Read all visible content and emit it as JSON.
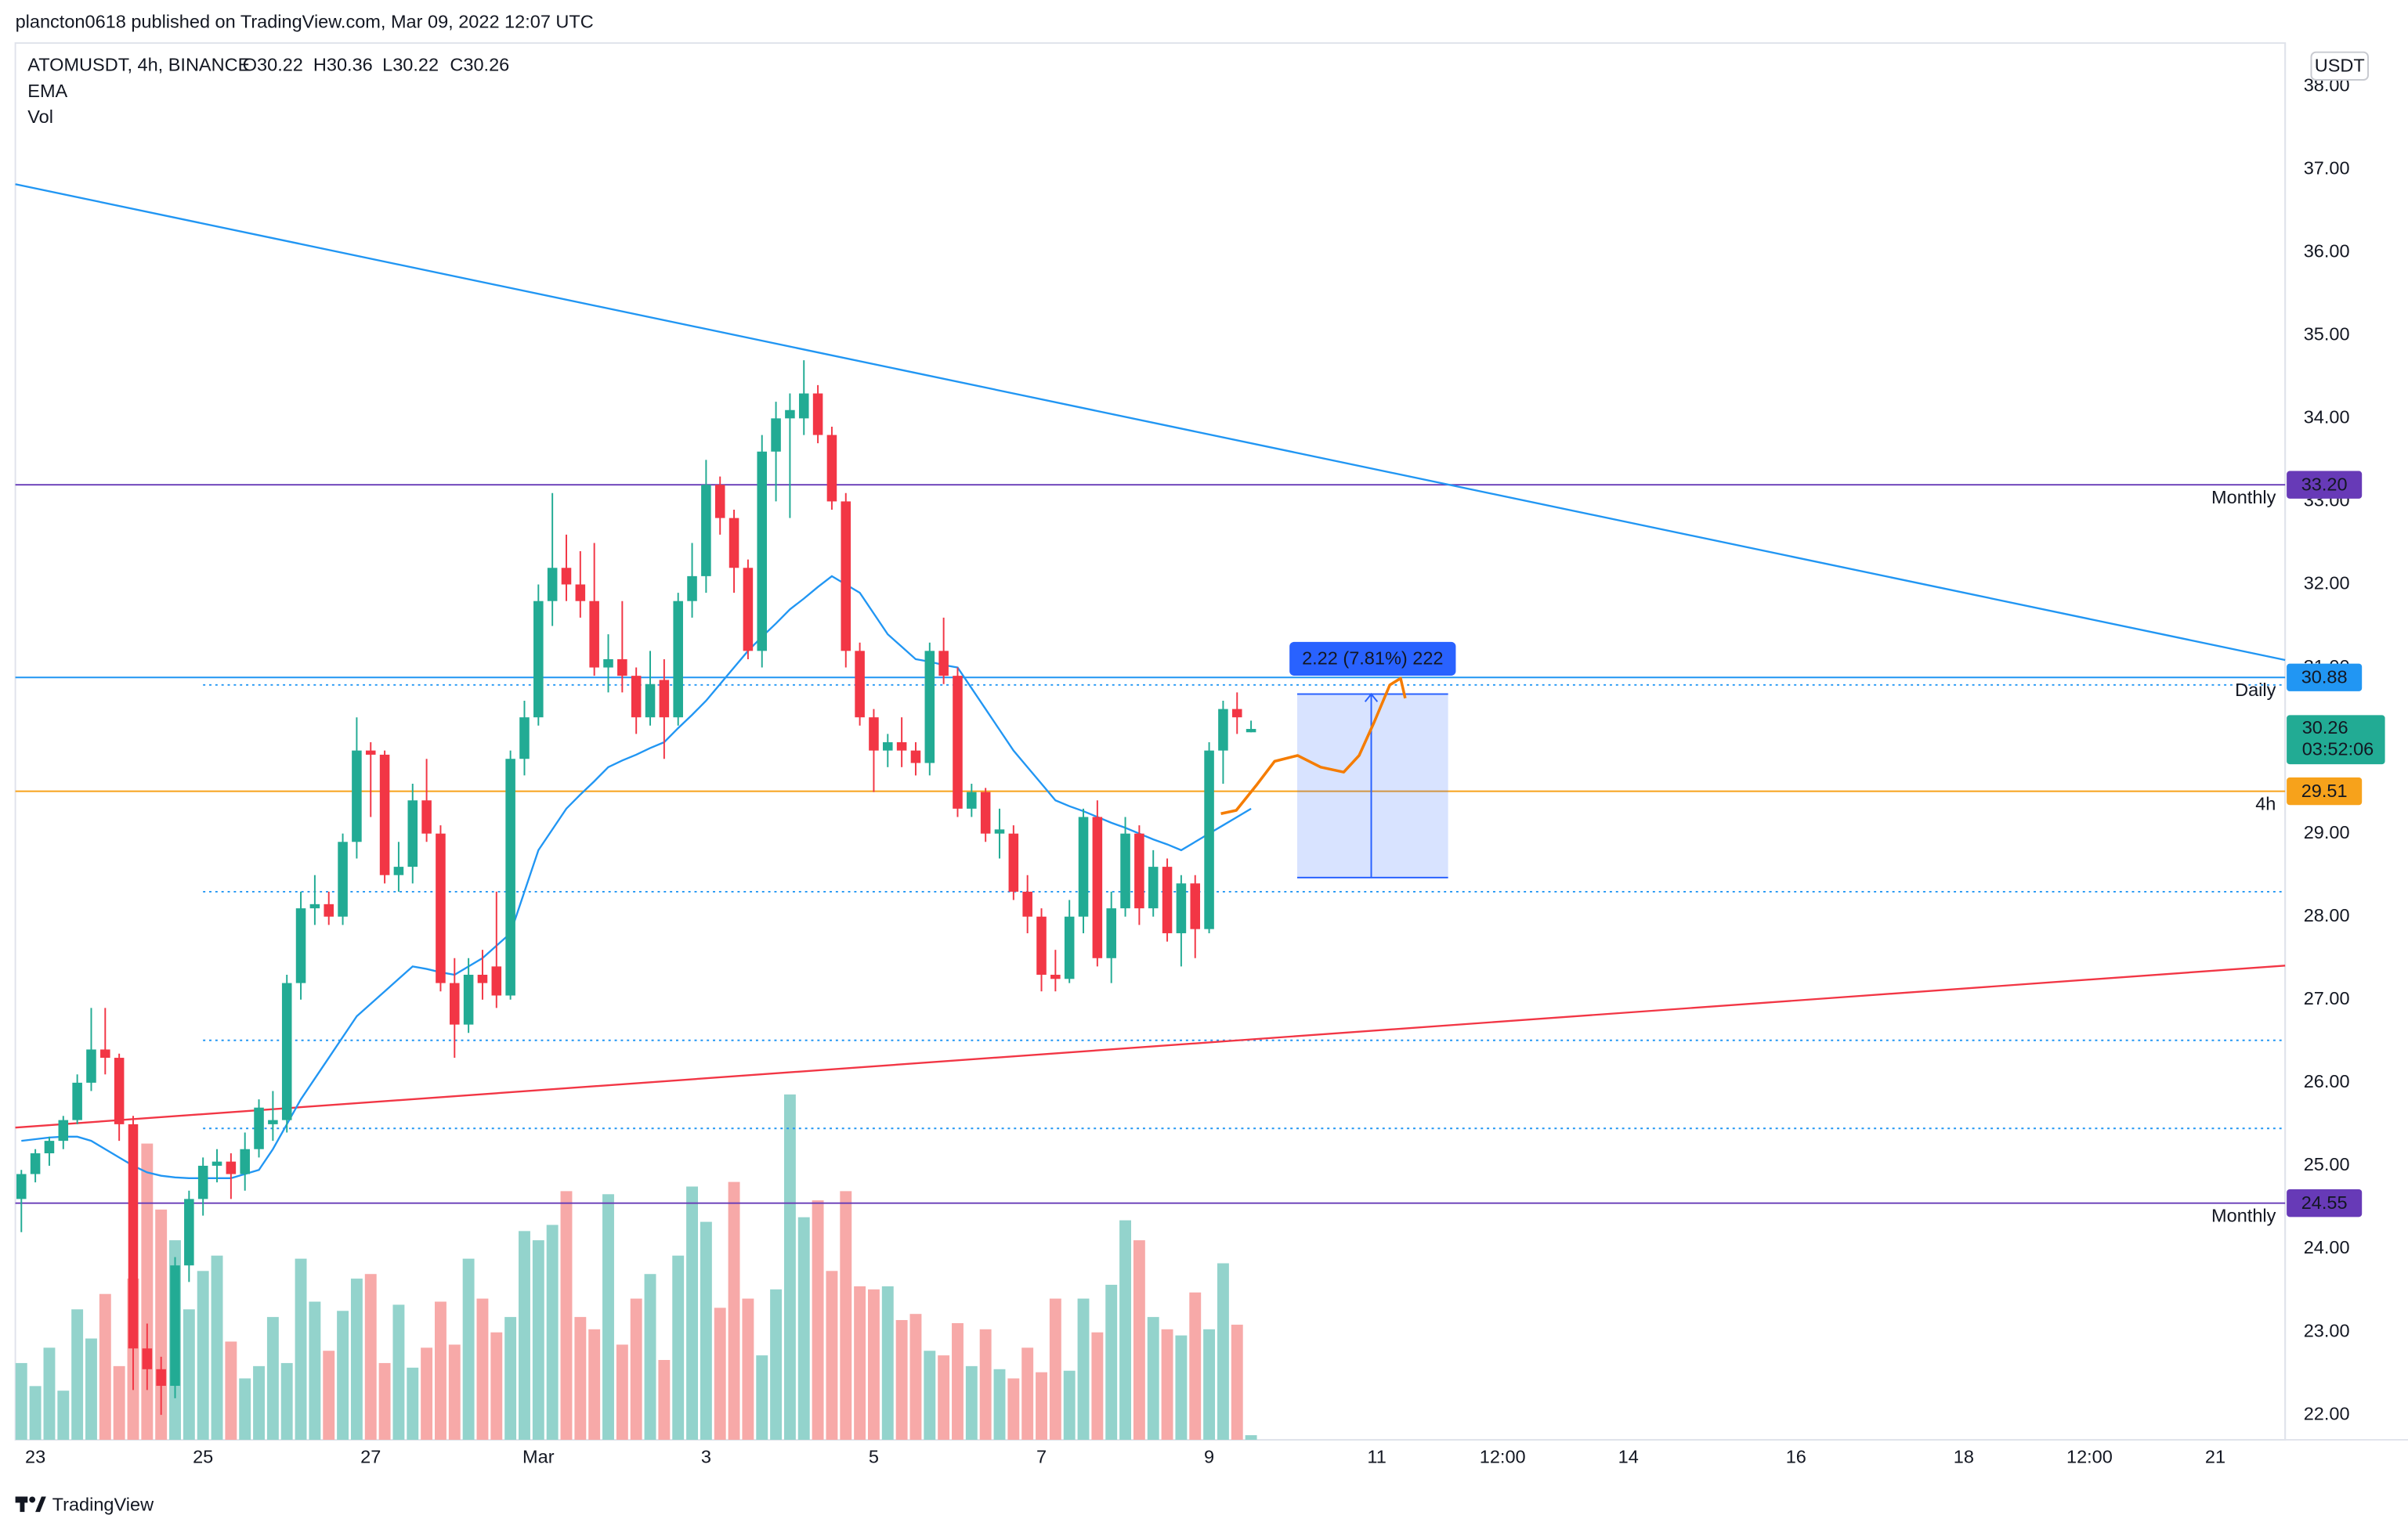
{
  "chart_data": {
    "type": "candlestick",
    "caption": "plancton0618 published on TradingView.com, Mar 09, 2022 12:07 UTC",
    "title": "ATOMUSDT, 4h, BINANCE",
    "ohlc_labels": [
      "O30.22",
      "H30.36",
      "L30.22",
      "C30.26"
    ],
    "indicators": [
      "EMA",
      "Vol"
    ],
    "currency": "USDT",
    "logo": "TradingView",
    "up_color": "#22ab94",
    "down_color": "#f23645",
    "volume_up_color": "#93d3cc",
    "volume_down_color": "#f7a9a8",
    "open": [
      24.6,
      24.9,
      25.15,
      25.3,
      25.55,
      26.0,
      26.4,
      26.3,
      25.5,
      22.8,
      22.55,
      22.35,
      23.8,
      24.6,
      25.0,
      25.05,
      24.9,
      25.2,
      25.5,
      25.55,
      27.2,
      28.1,
      28.15,
      28.0,
      28.9,
      30.0,
      29.95,
      28.5,
      28.6,
      29.4,
      29.0,
      27.2,
      26.7,
      27.3,
      27.4,
      27.05,
      29.9,
      30.4,
      31.8,
      32.2,
      32.0,
      31.8,
      31.0,
      31.1,
      30.9,
      30.4,
      30.85,
      30.4,
      31.8,
      32.1,
      33.2,
      32.8,
      32.2,
      31.2,
      33.6,
      34.0,
      34.0,
      34.3,
      33.8,
      33.0,
      31.2,
      30.4,
      30.0,
      30.1,
      30.0,
      29.85,
      31.2,
      30.9,
      29.3,
      29.5,
      29.0,
      29.0,
      28.3,
      28.0,
      27.3,
      27.25,
      28.0,
      29.2,
      27.5,
      28.1,
      29.0,
      28.1,
      28.6,
      27.8,
      28.4,
      27.85,
      30.0,
      30.5,
      30.22
    ],
    "high": [
      24.95,
      25.2,
      25.35,
      25.6,
      26.1,
      26.9,
      26.9,
      26.35,
      25.6,
      23.1,
      22.7,
      23.9,
      24.7,
      25.1,
      25.2,
      25.15,
      25.4,
      25.8,
      25.9,
      27.3,
      28.3,
      28.5,
      28.3,
      29.0,
      30.4,
      30.1,
      30.0,
      28.9,
      29.6,
      29.9,
      29.1,
      27.5,
      27.5,
      27.6,
      28.3,
      30.0,
      30.6,
      32.0,
      33.1,
      32.6,
      32.4,
      32.5,
      31.4,
      31.8,
      31.0,
      31.2,
      31.1,
      31.9,
      32.5,
      33.5,
      33.3,
      32.9,
      32.3,
      33.8,
      34.2,
      34.3,
      34.7,
      34.4,
      33.9,
      33.1,
      31.3,
      30.5,
      30.2,
      30.4,
      30.1,
      31.3,
      31.6,
      31.0,
      29.6,
      29.55,
      29.3,
      29.1,
      28.5,
      28.1,
      27.6,
      28.2,
      29.3,
      29.4,
      28.3,
      29.2,
      29.1,
      28.8,
      28.7,
      28.5,
      28.5,
      30.1,
      30.6,
      30.7,
      30.36
    ],
    "low": [
      24.2,
      24.8,
      25.0,
      25.2,
      25.5,
      25.9,
      26.1,
      25.3,
      22.3,
      22.3,
      22.0,
      22.2,
      23.6,
      24.4,
      24.8,
      24.6,
      24.7,
      25.1,
      25.3,
      25.4,
      27.0,
      27.9,
      27.9,
      27.9,
      28.7,
      29.2,
      28.4,
      28.3,
      28.4,
      28.9,
      27.1,
      26.3,
      26.6,
      27.0,
      26.9,
      27.0,
      29.7,
      30.3,
      31.5,
      31.8,
      31.6,
      30.9,
      30.7,
      30.7,
      30.2,
      30.3,
      29.9,
      30.3,
      31.6,
      31.9,
      32.6,
      31.9,
      31.1,
      31.0,
      33.0,
      32.8,
      33.8,
      33.7,
      32.9,
      31.0,
      30.3,
      29.5,
      29.8,
      29.8,
      29.7,
      29.7,
      30.8,
      29.2,
      29.2,
      28.9,
      28.7,
      28.2,
      27.8,
      27.1,
      27.1,
      27.2,
      27.8,
      27.4,
      27.2,
      28.0,
      27.9,
      28.0,
      27.7,
      27.4,
      27.5,
      27.8,
      29.6,
      30.2,
      30.22
    ],
    "close": [
      24.9,
      25.15,
      25.3,
      25.55,
      26.0,
      26.4,
      26.3,
      25.5,
      22.8,
      22.55,
      22.35,
      23.8,
      24.6,
      25.0,
      25.05,
      24.9,
      25.2,
      25.7,
      25.55,
      27.2,
      28.1,
      28.15,
      28.0,
      28.9,
      30.0,
      29.95,
      28.5,
      28.6,
      29.4,
      29.0,
      27.2,
      26.7,
      27.3,
      27.2,
      27.05,
      29.9,
      30.4,
      31.8,
      32.2,
      32.0,
      31.8,
      31.0,
      31.1,
      30.9,
      30.4,
      30.8,
      30.4,
      31.8,
      32.1,
      33.2,
      32.8,
      32.2,
      31.2,
      33.6,
      34.0,
      34.1,
      34.3,
      33.8,
      33.0,
      31.2,
      30.4,
      30.0,
      30.1,
      30.0,
      29.85,
      31.2,
      30.9,
      29.3,
      29.5,
      29.0,
      29.05,
      28.3,
      28.0,
      27.3,
      27.25,
      28.0,
      29.2,
      27.5,
      28.1,
      29.0,
      28.1,
      28.6,
      27.8,
      28.4,
      27.85,
      30.0,
      30.5,
      30.4,
      30.26
    ],
    "volume": [
      50,
      35,
      60,
      32,
      85,
      66,
      95,
      48,
      105,
      193,
      150,
      130,
      85,
      110,
      120,
      64,
      40,
      48,
      80,
      50,
      118,
      90,
      58,
      84,
      105,
      108,
      50,
      88,
      47,
      60,
      90,
      62,
      118,
      92,
      70,
      80,
      136,
      130,
      140,
      162,
      80,
      72,
      160,
      62,
      92,
      108,
      52,
      120,
      165,
      142,
      86,
      168,
      92,
      55,
      98,
      225,
      145,
      156,
      110,
      162,
      100,
      98,
      100,
      78,
      82,
      58,
      55,
      76,
      48,
      72,
      46,
      40,
      60,
      44,
      92,
      45,
      92,
      70,
      101,
      143,
      130,
      80,
      72,
      68,
      96,
      72,
      115,
      75,
      3
    ],
    "ema": {
      "name": "EMA",
      "color": "#2196f3",
      "values": [
        25.3,
        25.32,
        25.34,
        25.35,
        25.35,
        25.3,
        25.2,
        25.1,
        25.0,
        24.92,
        24.88,
        24.86,
        24.85,
        24.85,
        24.85,
        24.85,
        24.9,
        24.95,
        25.2,
        25.5,
        25.8,
        26.05,
        26.3,
        26.55,
        26.8,
        26.95,
        27.1,
        27.25,
        27.4,
        27.37,
        27.33,
        27.3,
        27.4,
        27.5,
        27.65,
        27.8,
        28.3,
        28.8,
        29.05,
        29.3,
        29.47,
        29.63,
        29.8,
        29.88,
        29.95,
        30.03,
        30.1,
        30.27,
        30.43,
        30.6,
        30.8,
        31.0,
        31.2,
        31.37,
        31.53,
        31.7,
        31.83,
        31.97,
        32.1,
        32.0,
        31.9,
        31.65,
        31.4,
        31.25,
        31.1,
        31.07,
        31.03,
        31.0,
        30.75,
        30.5,
        30.25,
        30.0,
        29.8,
        29.6,
        29.4,
        29.33,
        29.27,
        29.2,
        29.13,
        29.07,
        29.0,
        28.93,
        28.87,
        28.8,
        28.9,
        29.0,
        29.1,
        29.2,
        29.3
      ]
    },
    "xlim": [
      -0.43,
      162
    ],
    "xticks": [
      {
        "value": 1,
        "label": "23"
      },
      {
        "value": 13,
        "label": "25"
      },
      {
        "value": 25,
        "label": "27"
      },
      {
        "value": 37,
        "label": "Mar"
      },
      {
        "value": 49,
        "label": "3"
      },
      {
        "value": 61,
        "label": "5"
      },
      {
        "value": 73,
        "label": "7"
      },
      {
        "value": 85,
        "label": "9"
      },
      {
        "value": 97,
        "label": "11"
      },
      {
        "value": 106,
        "label": "12:00"
      },
      {
        "value": 115,
        "label": "14"
      },
      {
        "value": 127,
        "label": "16"
      },
      {
        "value": 139,
        "label": "18"
      },
      {
        "value": 148,
        "label": "12:00"
      },
      {
        "value": 157,
        "label": "21"
      }
    ],
    "ylim": [
      21.7,
      38.52
    ],
    "yticks": [
      {
        "value": 22,
        "label": "22.00"
      },
      {
        "value": 23,
        "label": "23.00"
      },
      {
        "value": 24,
        "label": "24.00"
      },
      {
        "value": 25,
        "label": "25.00"
      },
      {
        "value": 26,
        "label": "26.00"
      },
      {
        "value": 27,
        "label": "27.00"
      },
      {
        "value": 28,
        "label": "28.00"
      },
      {
        "value": 29,
        "label": "29.00"
      },
      {
        "value": 30,
        "label": "30.00"
      },
      {
        "value": 31,
        "label": "31.00"
      },
      {
        "value": 32,
        "label": "32.00"
      },
      {
        "value": 33,
        "label": "33.00"
      },
      {
        "value": 34,
        "label": "34.00"
      },
      {
        "value": 35,
        "label": "35.00"
      },
      {
        "value": 36,
        "label": "36.00"
      },
      {
        "value": 37,
        "label": "37.00"
      },
      {
        "value": 38,
        "label": "38.00"
      }
    ],
    "levels": [
      {
        "value": 33.2,
        "label": "33.20",
        "tag": "Monthly",
        "color": "#673ab7"
      },
      {
        "value": 30.88,
        "label": "30.88",
        "tag": "Daily",
        "color": "#2196f3"
      },
      {
        "value": 29.51,
        "label": "29.51",
        "tag": "4h",
        "color": "#f7a21b"
      },
      {
        "value": 24.55,
        "label": "24.55",
        "tag": "Monthly",
        "color": "#673ab7"
      }
    ],
    "dotted_levels": {
      "color": "#2196f3",
      "values": [
        30.79,
        28.3,
        26.51,
        25.45
      ]
    },
    "trendlines": [
      {
        "color": "#2196f3",
        "x": [
          -0.43,
          162
        ],
        "y": [
          36.82,
          31.09
        ]
      },
      {
        "color": "#f23645",
        "x": [
          -0.43,
          162
        ],
        "y": [
          25.46,
          27.41
        ]
      }
    ],
    "measure": {
      "x": [
        91.3,
        102.1
      ],
      "y": [
        28.47,
        30.68
      ],
      "arrow_x": 96.6,
      "label": "2.22 (7.81%) 222",
      "color": "#2962ff"
    },
    "projection": {
      "color": "#f57c00",
      "x": [
        85.84,
        86.94,
        88.37,
        89.68,
        91.33,
        92.98,
        94.63,
        95.73,
        96.83,
        97.93,
        98.7,
        99.03
      ],
      "y": [
        29.24,
        29.28,
        29.58,
        29.87,
        29.94,
        29.8,
        29.74,
        29.94,
        30.35,
        30.79,
        30.87,
        30.63
      ]
    },
    "last_price": 30.26,
    "countdown": "03:52:06"
  }
}
